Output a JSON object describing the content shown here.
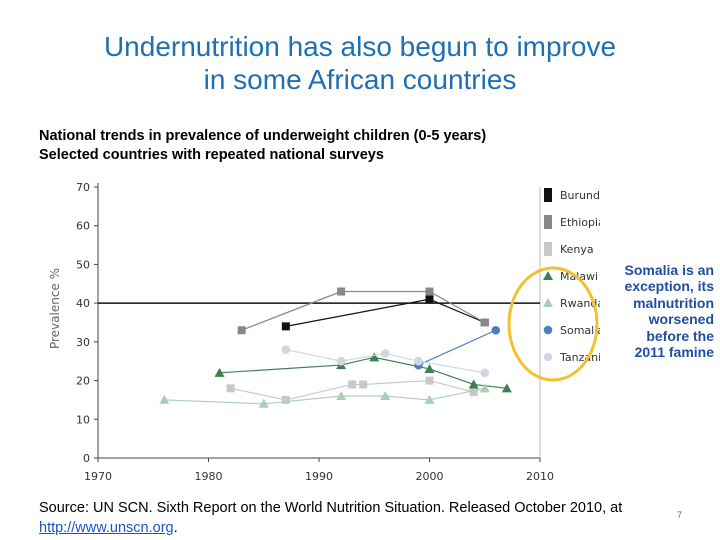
{
  "title_line1": "Undernutrition has also begun to improve",
  "title_line2": "in some African countries",
  "subtitle_line1": "National trends in prevalence of underweight children (0-5 years)",
  "subtitle_line2": "Selected countries with repeated national surveys",
  "callout_lines": [
    "Somalia is an",
    "exception, its",
    "malnutrition",
    "worsened",
    "before the",
    "2011 famine"
  ],
  "source_text": "Source: UN SCN. Sixth Report on the World Nutrition Situation. Released October 2010, at ",
  "source_link": "http://www.unscn.org",
  "source_end": ".",
  "slide_number": "7",
  "chart_data": {
    "type": "line",
    "title": "National trends in prevalence of underweight children (0-5 years)",
    "xlabel": "",
    "ylabel": "Prevalence %",
    "xlim": [
      1970,
      2010
    ],
    "ylim": [
      0,
      70
    ],
    "xticks": [
      1970,
      1980,
      1990,
      2000,
      2010
    ],
    "yticks": [
      0,
      10,
      20,
      30,
      40,
      50,
      60,
      70
    ],
    "legend_position": "right",
    "series": [
      {
        "name": "Burundi",
        "color": "#111111",
        "marker": "square",
        "x": [
          1987,
          2000,
          2005
        ],
        "y": [
          34,
          41,
          35
        ]
      },
      {
        "name": "Ethiopia",
        "color": "#888888",
        "marker": "square",
        "x": [
          1983,
          1992,
          2000,
          2005
        ],
        "y": [
          33,
          43,
          43,
          35
        ]
      },
      {
        "name": "Kenya",
        "color": "#c8c8c8",
        "marker": "square",
        "x": [
          1982,
          1987,
          1993,
          1994,
          2000,
          2004
        ],
        "y": [
          18,
          15,
          19,
          19,
          20,
          17
        ]
      },
      {
        "name": "Malawi",
        "color": "#3f7f53",
        "marker": "triangle",
        "x": [
          1981,
          1992,
          1995,
          2000,
          2004,
          2007
        ],
        "y": [
          22,
          24,
          26,
          23,
          19,
          18
        ]
      },
      {
        "name": "Rwanda",
        "color": "#a7d0b2",
        "marker": "triangle",
        "x": [
          1976,
          1985,
          1992,
          1996,
          2000,
          2005
        ],
        "y": [
          15,
          14,
          16,
          16,
          15,
          18
        ]
      },
      {
        "name": "Somalia",
        "color": "#4d7fbf",
        "marker": "circle",
        "x": [
          1999,
          2006
        ],
        "y": [
          24,
          33
        ]
      },
      {
        "name": "Tanzania",
        "color": "#cfd6e6",
        "marker": "circle",
        "x": [
          1987,
          1992,
          1996,
          1999,
          2005
        ],
        "y": [
          28,
          25,
          27,
          25,
          22
        ]
      }
    ],
    "annotation": "Somalia is an exception, its malnutrition worsened before the 2011 famine"
  }
}
